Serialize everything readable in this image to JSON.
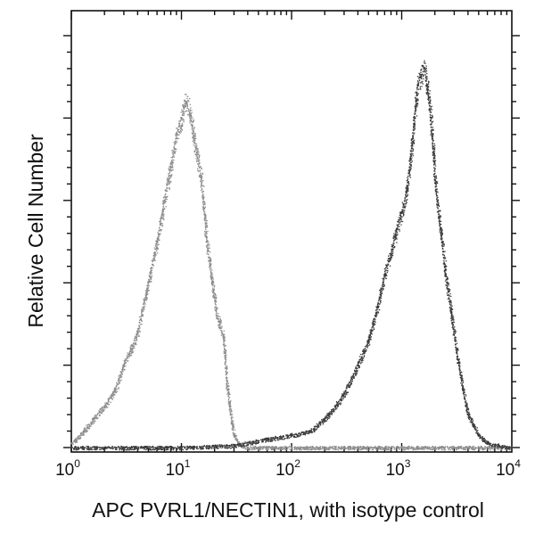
{
  "chart_data": {
    "type": "line",
    "title": "",
    "xlabel": "APC PVRL1/NECTIN1, with isotype control",
    "ylabel": "Relative Cell Number",
    "x_scale": "log",
    "xlim": [
      1,
      10000
    ],
    "ylim": [
      0,
      100
    ],
    "x_ticks": [
      {
        "value": 1,
        "base": "10",
        "exp": "0"
      },
      {
        "value": 10,
        "base": "10",
        "exp": "1"
      },
      {
        "value": 100,
        "base": "10",
        "exp": "2"
      },
      {
        "value": 1000,
        "base": "10",
        "exp": "3"
      },
      {
        "value": 10000,
        "base": "10",
        "exp": "4"
      }
    ],
    "grid": false,
    "legend": "none",
    "series": [
      {
        "name": "isotype control",
        "style": "light-gray-dotted",
        "x": [
          1.0,
          1.3,
          1.6,
          2.0,
          2.5,
          3.0,
          3.5,
          4.0,
          5.0,
          6.0,
          7.0,
          8.0,
          9.0,
          10.0,
          11.0,
          12.0,
          13.0,
          15.0,
          17.0,
          19.0,
          21.0,
          24.0,
          26.0,
          28.0,
          30.0,
          33.0,
          36.0,
          40.0,
          60.0,
          100.0,
          300.0,
          1000.0,
          3000.0,
          10000.0
        ],
        "values": [
          1,
          4,
          7,
          10,
          14,
          20,
          24,
          28,
          40,
          50,
          60,
          68,
          76,
          80,
          84,
          81,
          75,
          66,
          50,
          40,
          32,
          27,
          15,
          8,
          3,
          1,
          0.5,
          0,
          0,
          0,
          0,
          0,
          0,
          0
        ]
      },
      {
        "name": "APC PVRL1/NECTIN1",
        "style": "dark-gray-dotted",
        "x": [
          1.0,
          10.0,
          30.0,
          60.0,
          100.0,
          150.0,
          200.0,
          250.0,
          300.0,
          400.0,
          500.0,
          600.0,
          700.0,
          800.0,
          900.0,
          1000.0,
          1100.0,
          1200.0,
          1300.0,
          1400.0,
          1500.0,
          1600.0,
          1700.0,
          1800.0,
          1900.0,
          2000.0,
          2200.0,
          2500.0,
          2800.0,
          3200.0,
          3600.0,
          4000.0,
          5000.0,
          6000.0,
          10000.0
        ],
        "values": [
          0,
          0,
          0.5,
          2,
          3,
          4,
          7,
          10,
          13,
          20,
          26,
          34,
          42,
          47,
          53,
          57,
          62,
          70,
          80,
          88,
          90,
          92,
          88,
          82,
          75,
          65,
          55,
          42,
          33,
          22,
          14,
          8,
          3,
          1,
          0
        ]
      }
    ]
  }
}
